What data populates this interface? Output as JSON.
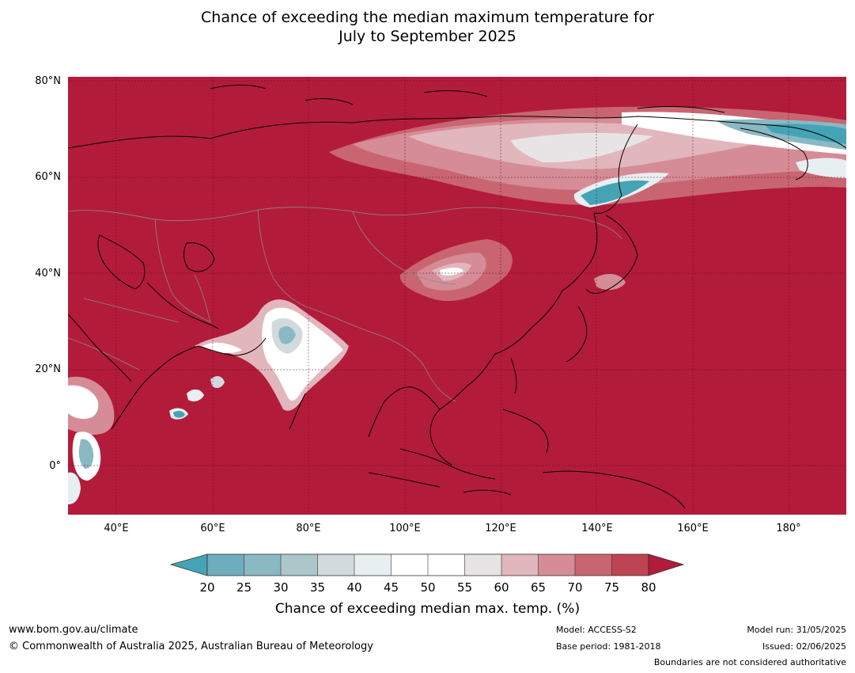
{
  "title": {
    "line1": "Chance of exceeding the median maximum temperature for",
    "line2": "July to September 2025"
  },
  "map": {
    "lat_labels": [
      "80°N",
      "60°N",
      "40°N",
      "20°N",
      "0°"
    ],
    "lon_labels": [
      "40°E",
      "60°E",
      "80°E",
      "100°E",
      "120°E",
      "140°E",
      "160°E",
      "180°"
    ],
    "lon_range": [
      30,
      192
    ],
    "lat_range": [
      -10,
      81
    ]
  },
  "colorbar": {
    "ticks": [
      "20",
      "25",
      "30",
      "35",
      "40",
      "45",
      "50",
      "55",
      "60",
      "65",
      "70",
      "75",
      "80"
    ],
    "colors": [
      "#45a3b6",
      "#6dadbd",
      "#8ab8c3",
      "#abc7cb",
      "#d2dadd",
      "#e8eff0",
      "#ffffff",
      "#ffffff",
      "#e8e4e6",
      "#e1b6bd",
      "#d58c96",
      "#c96571",
      "#bf4453",
      "#b31b3a"
    ],
    "label": "Chance of exceeding median max. temp. (%)"
  },
  "footer": {
    "url": "www.bom.gov.au/climate",
    "copyright": "© Commonwealth of Australia 2025, Australian Bureau of Meteorology",
    "model": "Model: ACCESS-S2",
    "base_period": "Base period: 1981-2018",
    "model_run": "Model run: 31/05/2025",
    "issued": "Issued: 02/06/2025",
    "disclaimer": "Boundaries are not considered authoritative"
  }
}
